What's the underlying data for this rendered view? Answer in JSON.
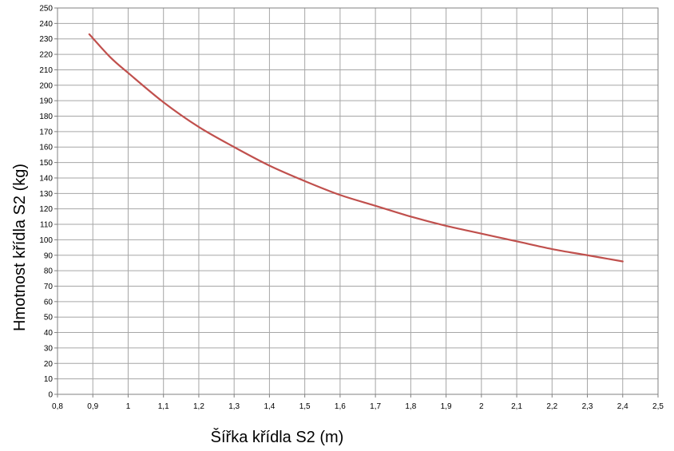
{
  "chart_data": {
    "type": "line",
    "xlabel": "Šířka křídla S2 (m)",
    "ylabel": "Hmotnost křídla S2 (kg)",
    "xlim": [
      0.8,
      2.5
    ],
    "ylim": [
      0,
      250
    ],
    "x_ticks": [
      "0,8",
      "0,9",
      "1",
      "1,1",
      "1,2",
      "1,3",
      "1,4",
      "1,5",
      "1,6",
      "1,7",
      "1,8",
      "1,9",
      "2",
      "2,1",
      "2,2",
      "2,3",
      "2,4",
      "2,5"
    ],
    "y_ticks": [
      "0",
      "10",
      "20",
      "30",
      "40",
      "50",
      "60",
      "70",
      "80",
      "90",
      "100",
      "110",
      "120",
      "130",
      "140",
      "150",
      "160",
      "170",
      "180",
      "190",
      "200",
      "210",
      "220",
      "230",
      "240",
      "250"
    ],
    "grid": true,
    "line_color": "#c0504d",
    "series": [
      {
        "x": [
          0.89,
          0.95,
          1.0,
          1.1,
          1.2,
          1.3,
          1.4,
          1.5,
          1.6,
          1.7,
          1.8,
          1.9,
          2.0,
          2.1,
          2.2,
          2.3,
          2.4
        ],
        "values": [
          233,
          218,
          208,
          189,
          173,
          160,
          148,
          138,
          129,
          122,
          115,
          109,
          104,
          99,
          94,
          90,
          86
        ]
      }
    ]
  }
}
